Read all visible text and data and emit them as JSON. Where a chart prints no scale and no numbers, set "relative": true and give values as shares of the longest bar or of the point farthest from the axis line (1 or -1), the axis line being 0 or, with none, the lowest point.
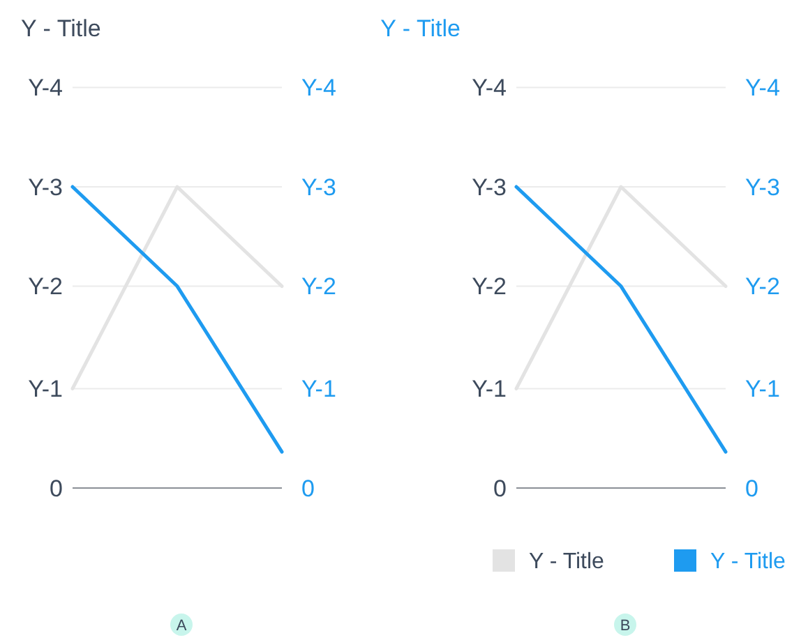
{
  "chart_data": [
    {
      "type": "line",
      "relative": true,
      "ylabel": "Y - Title",
      "y2label": "Y - Title",
      "categories": [
        null,
        null,
        null
      ],
      "series": [
        {
          "color": "#e3e3e3",
          "values": [
            0.33,
            1,
            0.67
          ]
        },
        {
          "color": "#1e9bf0",
          "values": [
            1,
            0.67,
            0.12
          ]
        }
      ],
      "marker": "none",
      "ref_lines": [
        {
          "axis": "y",
          "value": 1.33,
          "label": "Y-4",
          "color": "#ebebeb"
        },
        {
          "axis": "y",
          "value": 1,
          "label": "Y-3",
          "color": "#ebebeb"
        },
        {
          "axis": "y",
          "value": 0.67,
          "label": "Y-2",
          "color": "#ebebeb"
        },
        {
          "axis": "y",
          "value": 0.33,
          "label": "Y-1",
          "color": "#ebebeb"
        },
        {
          "axis": "y",
          "value": 0,
          "label": "0",
          "color": "#8a8f96"
        }
      ],
      "annotations": [
        "Y-4",
        "Y-3",
        "Y-2",
        "Y-1",
        "0",
        "A"
      ]
    },
    {
      "type": "line",
      "relative": true,
      "categories": [
        null,
        null,
        null
      ],
      "series": [
        {
          "name": "Y - Title",
          "color": "#e3e3e3",
          "values": [
            0.33,
            1,
            0.67
          ]
        },
        {
          "name": "Y - Title",
          "color": "#1e9bf0",
          "values": [
            1,
            0.67,
            0.12
          ]
        }
      ],
      "legend": "bottom",
      "marker": "none",
      "ref_lines": [
        {
          "axis": "y",
          "value": 1.33,
          "label": "Y-4",
          "color": "#ebebeb"
        },
        {
          "axis": "y",
          "value": 1,
          "label": "Y-3",
          "color": "#ebebeb"
        },
        {
          "axis": "y",
          "value": 0.67,
          "label": "Y-2",
          "color": "#ebebeb"
        },
        {
          "axis": "y",
          "value": 0.33,
          "label": "Y-1",
          "color": "#ebebeb"
        },
        {
          "axis": "y",
          "value": 0,
          "label": "0",
          "color": "#8a8f96"
        }
      ],
      "annotations": [
        "Y-4",
        "Y-3",
        "Y-2",
        "Y-1",
        "0",
        "B"
      ]
    }
  ]
}
